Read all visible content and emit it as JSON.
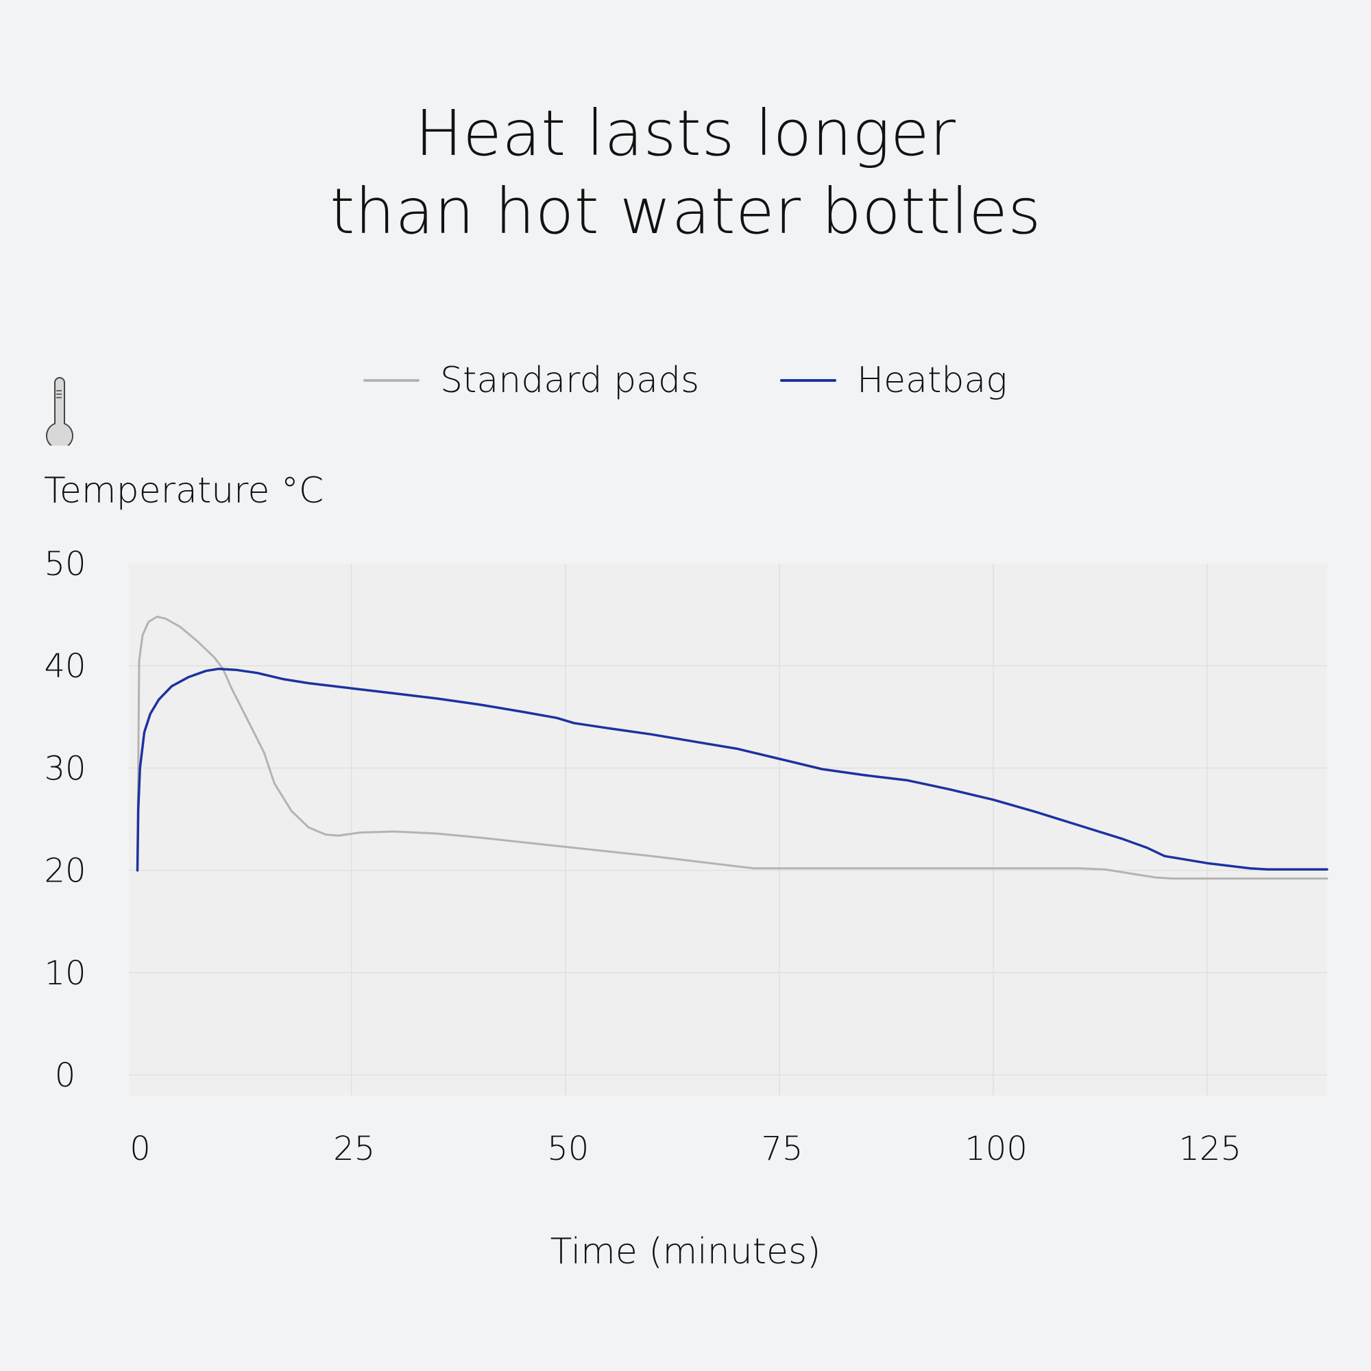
{
  "colors": {
    "background": "#f2f3f5",
    "plot_background": "#efefef",
    "grid": "#e0e0e0",
    "standard": "#b3b3b3",
    "heatbag": "#1c32a0"
  },
  "icons": {
    "thermometer": "thermometer-icon"
  },
  "chart_data": {
    "type": "line",
    "title": [
      "Heat lasts longer",
      "than hot water bottles"
    ],
    "xlabel": "Time (minutes)",
    "ylabel": "Temperature °C",
    "xlim": [
      -1,
      139
    ],
    "ylim": [
      -2,
      50
    ],
    "xticks": [
      0,
      25,
      50,
      75,
      100,
      125
    ],
    "yticks": [
      0,
      10,
      20,
      30,
      40,
      50
    ],
    "grid": true,
    "legend_position": "top-center",
    "series": [
      {
        "name": "Standard pads",
        "color": "#b3b3b3",
        "points": [
          [
            0,
            20
          ],
          [
            0.2,
            40.5
          ],
          [
            0.6,
            43
          ],
          [
            1.3,
            44.3
          ],
          [
            2.3,
            44.8
          ],
          [
            3.3,
            44.6
          ],
          [
            5,
            43.8
          ],
          [
            7,
            42.4
          ],
          [
            9,
            40.8
          ],
          [
            10,
            39.7
          ],
          [
            11,
            37.8
          ],
          [
            13,
            34.5
          ],
          [
            14.8,
            31.5
          ],
          [
            16,
            28.5
          ],
          [
            18,
            25.8
          ],
          [
            20,
            24.2
          ],
          [
            22,
            23.5
          ],
          [
            23.5,
            23.4
          ],
          [
            26,
            23.7
          ],
          [
            30,
            23.8
          ],
          [
            35,
            23.6
          ],
          [
            40,
            23.2
          ],
          [
            50,
            22.3
          ],
          [
            60,
            21.4
          ],
          [
            65,
            20.9
          ],
          [
            70,
            20.4
          ],
          [
            72,
            20.2
          ],
          [
            80,
            20.2
          ],
          [
            90,
            20.2
          ],
          [
            100,
            20.2
          ],
          [
            110,
            20.2
          ],
          [
            113,
            20.1
          ],
          [
            116,
            19.7
          ],
          [
            119,
            19.3
          ],
          [
            121,
            19.2
          ],
          [
            125,
            19.2
          ],
          [
            130,
            19.2
          ],
          [
            139,
            19.2
          ]
        ]
      },
      {
        "name": "Heatbag",
        "color": "#1c32a0",
        "points": [
          [
            0,
            20
          ],
          [
            0.1,
            26
          ],
          [
            0.3,
            30
          ],
          [
            0.8,
            33.5
          ],
          [
            1.5,
            35.3
          ],
          [
            2.5,
            36.7
          ],
          [
            4,
            38
          ],
          [
            6,
            38.9
          ],
          [
            8,
            39.5
          ],
          [
            9.5,
            39.7
          ],
          [
            11.5,
            39.6
          ],
          [
            14,
            39.3
          ],
          [
            17,
            38.7
          ],
          [
            20,
            38.3
          ],
          [
            25,
            37.8
          ],
          [
            30,
            37.3
          ],
          [
            35,
            36.8
          ],
          [
            40,
            36.2
          ],
          [
            45,
            35.5
          ],
          [
            49,
            34.9
          ],
          [
            51,
            34.4
          ],
          [
            55,
            33.9
          ],
          [
            60,
            33.3
          ],
          [
            65,
            32.6
          ],
          [
            70,
            31.9
          ],
          [
            75,
            30.9
          ],
          [
            80,
            29.9
          ],
          [
            85,
            29.3
          ],
          [
            90,
            28.8
          ],
          [
            95,
            27.9
          ],
          [
            100,
            26.9
          ],
          [
            105,
            25.7
          ],
          [
            110,
            24.4
          ],
          [
            115,
            23.1
          ],
          [
            118,
            22.2
          ],
          [
            120,
            21.4
          ],
          [
            125,
            20.7
          ],
          [
            130,
            20.2
          ],
          [
            132,
            20.1
          ],
          [
            139,
            20.1
          ]
        ]
      }
    ]
  }
}
